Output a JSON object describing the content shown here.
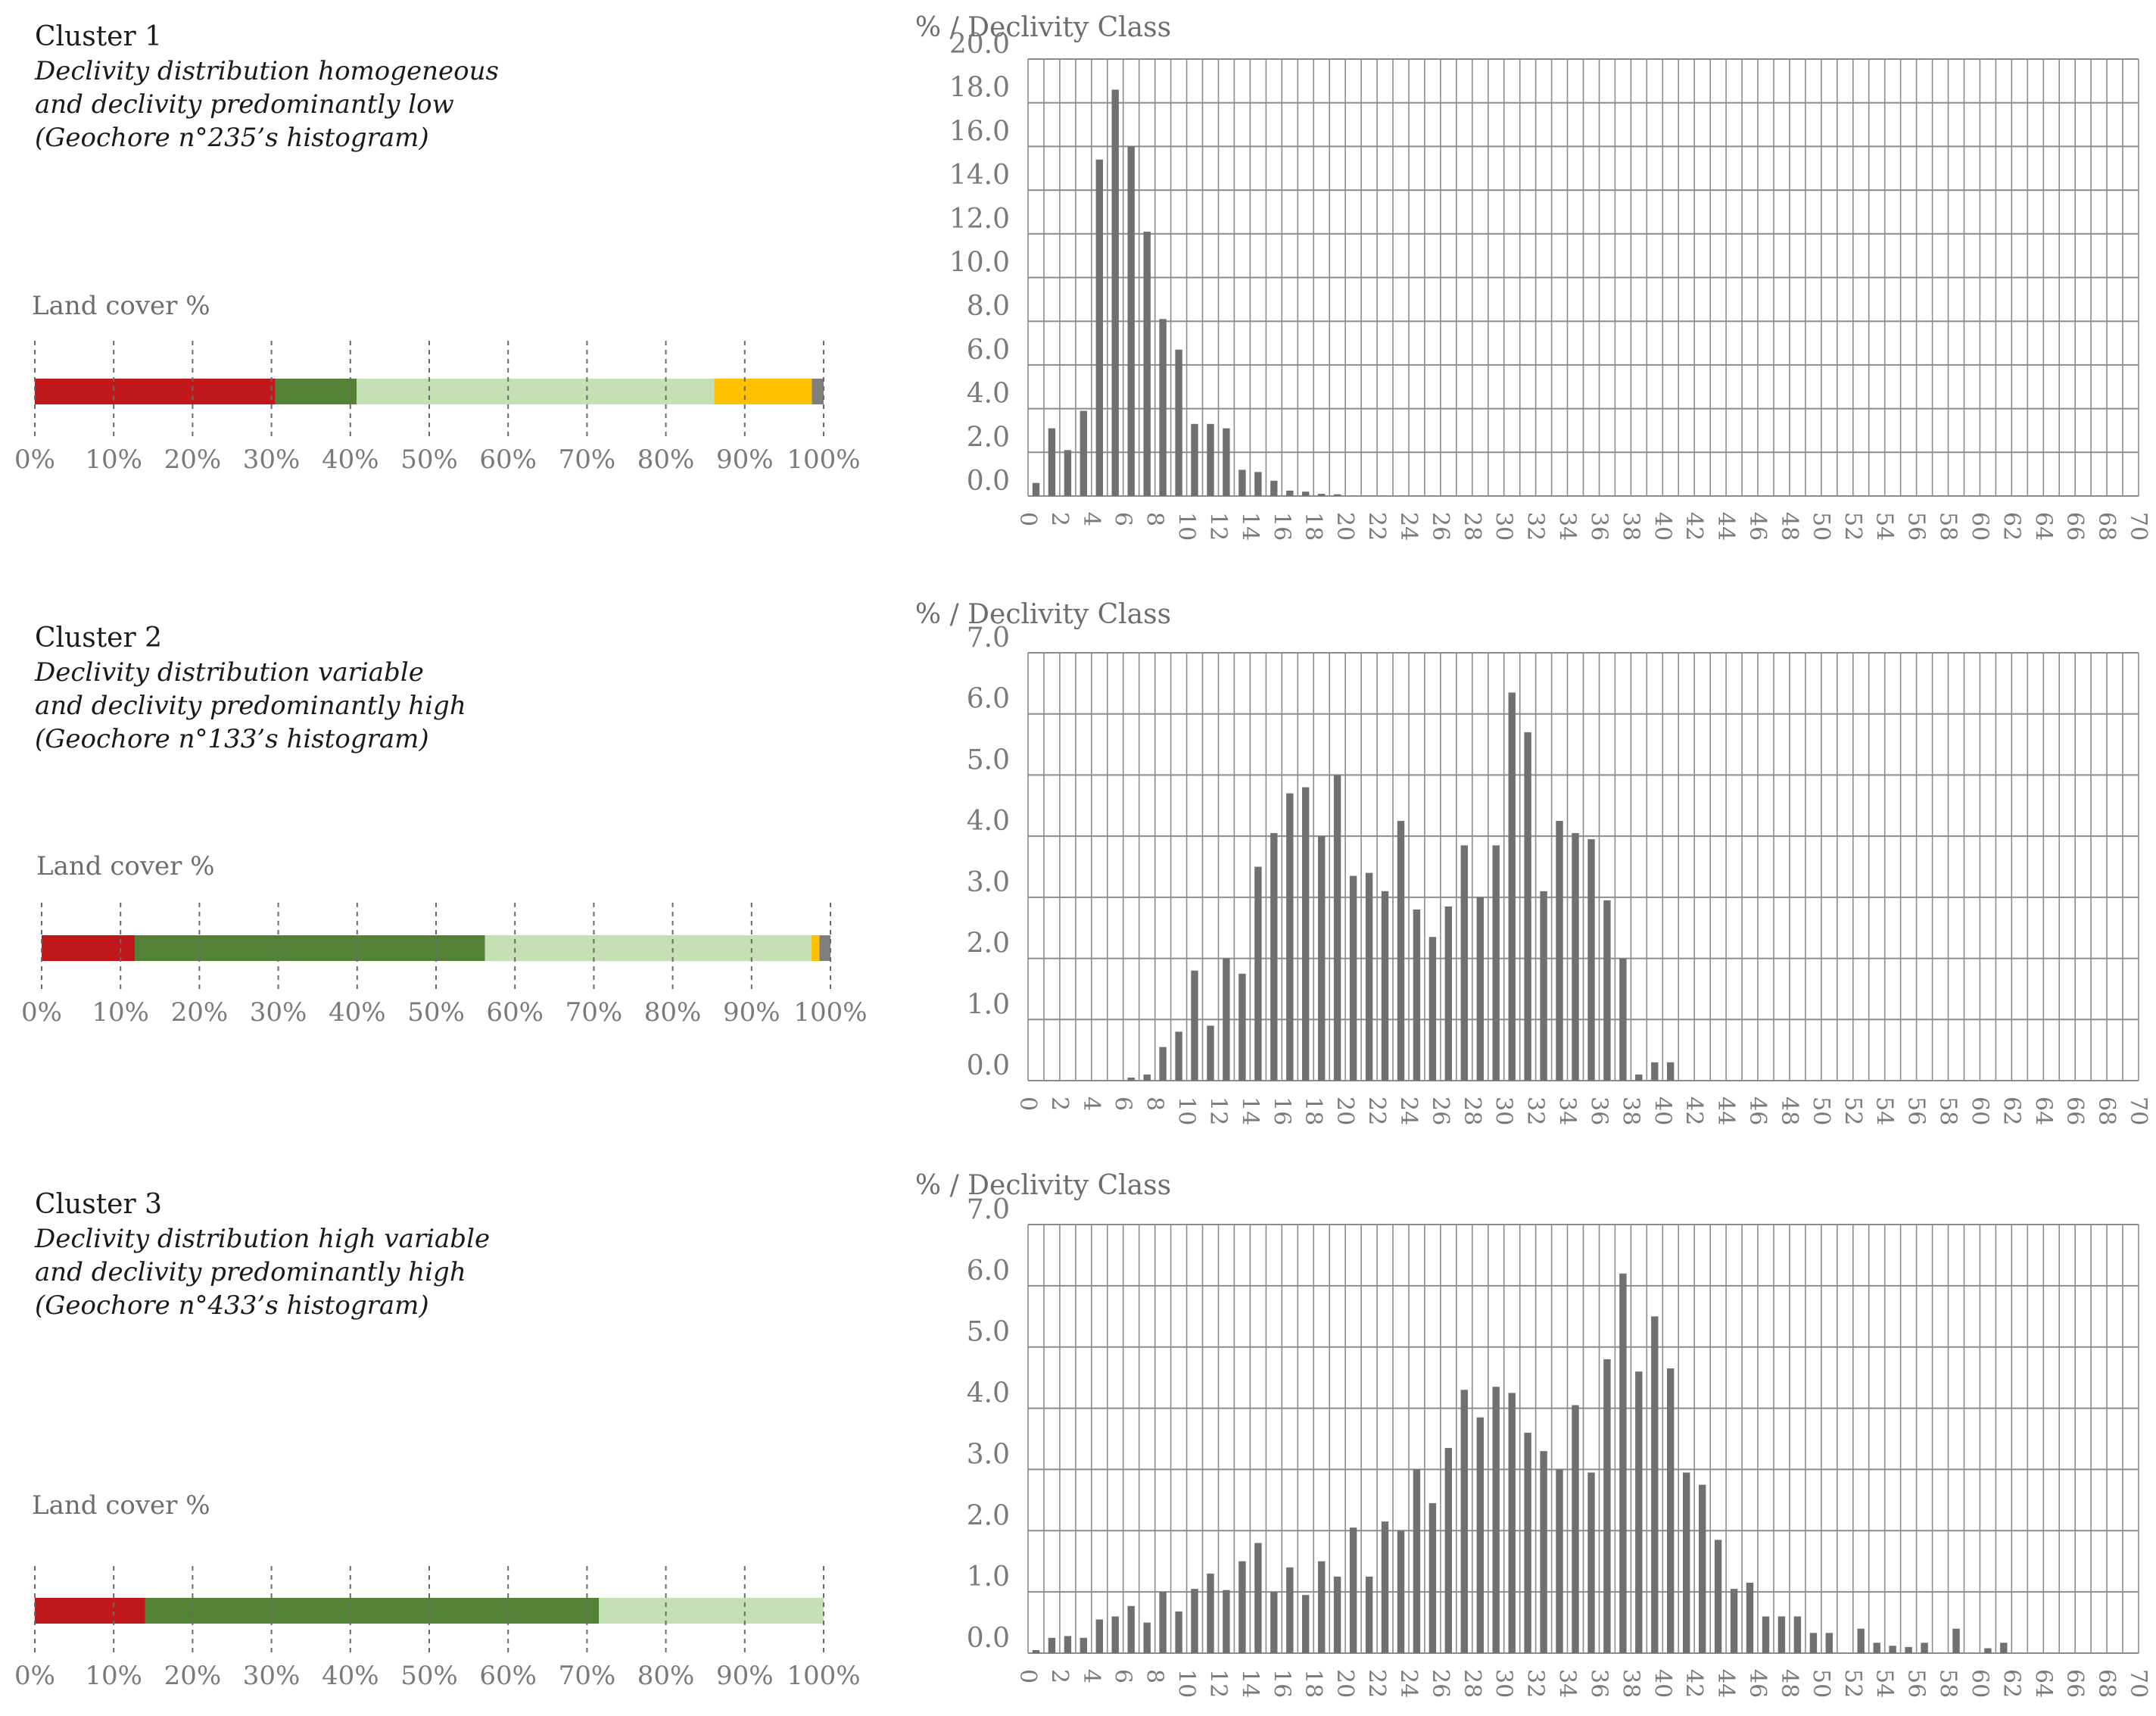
{
  "clusters": [
    {
      "title": "Cluster 1",
      "description": [
        "Declivity distribution homogeneous",
        "and declivity predominantly low",
        "(Geochore n°235’s histogram)"
      ],
      "land_cover_label": "Land cover %"
    },
    {
      "title": "Cluster 2",
      "description": [
        "Declivity distribution variable",
        "and declivity predominantly high",
        "(Geochore n°133’s histogram)"
      ],
      "land_cover_label": "Land cover %"
    },
    {
      "title": "Cluster 3",
      "description": [
        "Declivity distribution high variable",
        "and declivity predominantly high",
        "(Geochore n°433’s histogram)"
      ],
      "land_cover_label": "Land cover %"
    }
  ],
  "colors": {
    "urban": "#c0171b",
    "forest": "#538135",
    "grassland": "#c5e0b4",
    "agriculture": "#ffc000",
    "other": "#7f7f7f",
    "bar": "#707070",
    "grid": "#8c8c8c",
    "tick": "#7a7a7a"
  },
  "chart_data": [
    {
      "type": "bar",
      "orientation": "horizontal-stacked",
      "title": "Land cover %",
      "series": [
        {
          "name": "red",
          "color": "#c0171b",
          "value": 30.5
        },
        {
          "name": "dark green",
          "color": "#538135",
          "value": 10.3
        },
        {
          "name": "light green",
          "color": "#c5e0b4",
          "value": 45.3
        },
        {
          "name": "yellow",
          "color": "#ffc000",
          "value": 12.4
        },
        {
          "name": "grey",
          "color": "#7f7f7f",
          "value": 1.5
        }
      ],
      "xticks": [
        "0%",
        "10%",
        "20%",
        "30%",
        "40%",
        "50%",
        "60%",
        "70%",
        "80%",
        "90%",
        "100%"
      ],
      "xlim": [
        0,
        100
      ]
    },
    {
      "type": "bar",
      "title": "% / Declivity Class",
      "ylim": [
        0,
        20
      ],
      "yticks": [
        "0.0",
        "2.0",
        "4.0",
        "6.0",
        "8.0",
        "10.0",
        "12.0",
        "14.0",
        "16.0",
        "18.0",
        "20.0"
      ],
      "xticks": [
        "0",
        "2",
        "4",
        "6",
        "8",
        "10",
        "12",
        "14",
        "16",
        "18",
        "20",
        "22",
        "24",
        "26",
        "28",
        "30",
        "32",
        "34",
        "36",
        "38",
        "40",
        "42",
        "44",
        "46",
        "48",
        "50",
        "52",
        "54",
        "56",
        "58",
        "60",
        "62",
        "64",
        "66",
        "68",
        "70"
      ],
      "values": [
        0.6,
        3.1,
        2.1,
        3.9,
        15.4,
        18.6,
        16.0,
        12.1,
        8.1,
        6.7,
        3.3,
        3.3,
        3.1,
        1.2,
        1.1,
        0.7,
        0.25,
        0.2,
        0.1,
        0.08,
        0,
        0,
        0,
        0,
        0,
        0,
        0,
        0,
        0,
        0,
        0,
        0,
        0,
        0,
        0,
        0,
        0,
        0,
        0,
        0,
        0,
        0,
        0,
        0,
        0,
        0,
        0,
        0,
        0,
        0,
        0,
        0,
        0,
        0,
        0,
        0,
        0,
        0,
        0,
        0,
        0,
        0,
        0,
        0,
        0,
        0,
        0,
        0,
        0,
        0
      ]
    },
    {
      "type": "bar",
      "orientation": "horizontal-stacked",
      "title": "Land cover %",
      "series": [
        {
          "name": "red",
          "color": "#c0171b",
          "value": 11.8
        },
        {
          "name": "dark green",
          "color": "#538135",
          "value": 44.4
        },
        {
          "name": "light green",
          "color": "#c5e0b4",
          "value": 41.4
        },
        {
          "name": "yellow",
          "color": "#ffc000",
          "value": 1.0
        },
        {
          "name": "grey",
          "color": "#7f7f7f",
          "value": 1.4
        }
      ],
      "xticks": [
        "0%",
        "10%",
        "20%",
        "30%",
        "40%",
        "50%",
        "60%",
        "70%",
        "80%",
        "90%",
        "100%"
      ],
      "xlim": [
        0,
        100
      ]
    },
    {
      "type": "bar",
      "title": "% / Declivity Class",
      "ylim": [
        0,
        7
      ],
      "yticks": [
        "0.0",
        "1.0",
        "2.0",
        "3.0",
        "4.0",
        "5.0",
        "6.0",
        "7.0"
      ],
      "xticks": [
        "0",
        "2",
        "4",
        "6",
        "8",
        "10",
        "12",
        "14",
        "16",
        "18",
        "20",
        "22",
        "24",
        "26",
        "28",
        "30",
        "32",
        "34",
        "36",
        "38",
        "40",
        "42",
        "44",
        "46",
        "48",
        "50",
        "52",
        "54",
        "56",
        "58",
        "60",
        "62",
        "64",
        "66",
        "68",
        "70"
      ],
      "values": [
        0,
        0,
        0,
        0,
        0,
        0,
        0.05,
        0.1,
        0.55,
        0.8,
        1.8,
        0.9,
        2.0,
        1.75,
        3.5,
        4.05,
        4.7,
        4.8,
        4.0,
        5.0,
        3.35,
        3.4,
        3.1,
        4.25,
        2.8,
        2.35,
        2.85,
        3.85,
        3.0,
        3.85,
        6.35,
        5.7,
        3.1,
        4.25,
        4.05,
        3.95,
        2.95,
        2.0,
        0.1,
        0.3,
        0.3,
        0,
        0,
        0,
        0,
        0,
        0,
        0,
        0,
        0,
        0,
        0,
        0,
        0,
        0,
        0,
        0,
        0,
        0,
        0,
        0,
        0,
        0,
        0,
        0,
        0,
        0,
        0,
        0,
        0
      ]
    },
    {
      "type": "bar",
      "orientation": "horizontal-stacked",
      "title": "Land cover %",
      "series": [
        {
          "name": "red",
          "color": "#c0171b",
          "value": 14.0
        },
        {
          "name": "dark green",
          "color": "#538135",
          "value": 57.5
        },
        {
          "name": "light green",
          "color": "#c5e0b4",
          "value": 28.5
        }
      ],
      "xticks": [
        "0%",
        "10%",
        "20%",
        "30%",
        "40%",
        "50%",
        "60%",
        "70%",
        "80%",
        "90%",
        "100%"
      ],
      "xlim": [
        0,
        100
      ]
    },
    {
      "type": "bar",
      "title": "% / Declivity Class",
      "ylim": [
        0,
        7
      ],
      "yticks": [
        "0.0",
        "1.0",
        "2.0",
        "3.0",
        "4.0",
        "5.0",
        "6.0",
        "7.0"
      ],
      "xticks": [
        "0",
        "2",
        "4",
        "6",
        "8",
        "10",
        "12",
        "14",
        "16",
        "18",
        "20",
        "22",
        "24",
        "26",
        "28",
        "30",
        "32",
        "34",
        "36",
        "38",
        "40",
        "42",
        "44",
        "46",
        "48",
        "50",
        "52",
        "54",
        "56",
        "58",
        "60",
        "62",
        "64",
        "66",
        "68",
        "70"
      ],
      "values": [
        0.05,
        0.25,
        0.28,
        0.25,
        0.55,
        0.6,
        0.77,
        0.5,
        1.0,
        0.68,
        1.05,
        1.3,
        1.03,
        1.5,
        1.8,
        1.0,
        1.4,
        0.95,
        1.5,
        1.25,
        2.05,
        1.25,
        2.15,
        2.0,
        3.0,
        2.45,
        3.35,
        4.3,
        3.85,
        4.35,
        4.25,
        3.6,
        3.3,
        3.0,
        4.05,
        2.95,
        4.8,
        6.2,
        4.6,
        5.5,
        4.65,
        2.95,
        2.75,
        1.85,
        1.05,
        1.15,
        0.6,
        0.6,
        0.6,
        0.33,
        0.33,
        0,
        0.4,
        0.17,
        0.12,
        0.1,
        0.17,
        0,
        0.4,
        0,
        0.08,
        0.17,
        0,
        0,
        0,
        0,
        0,
        0,
        0,
        0
      ]
    }
  ]
}
